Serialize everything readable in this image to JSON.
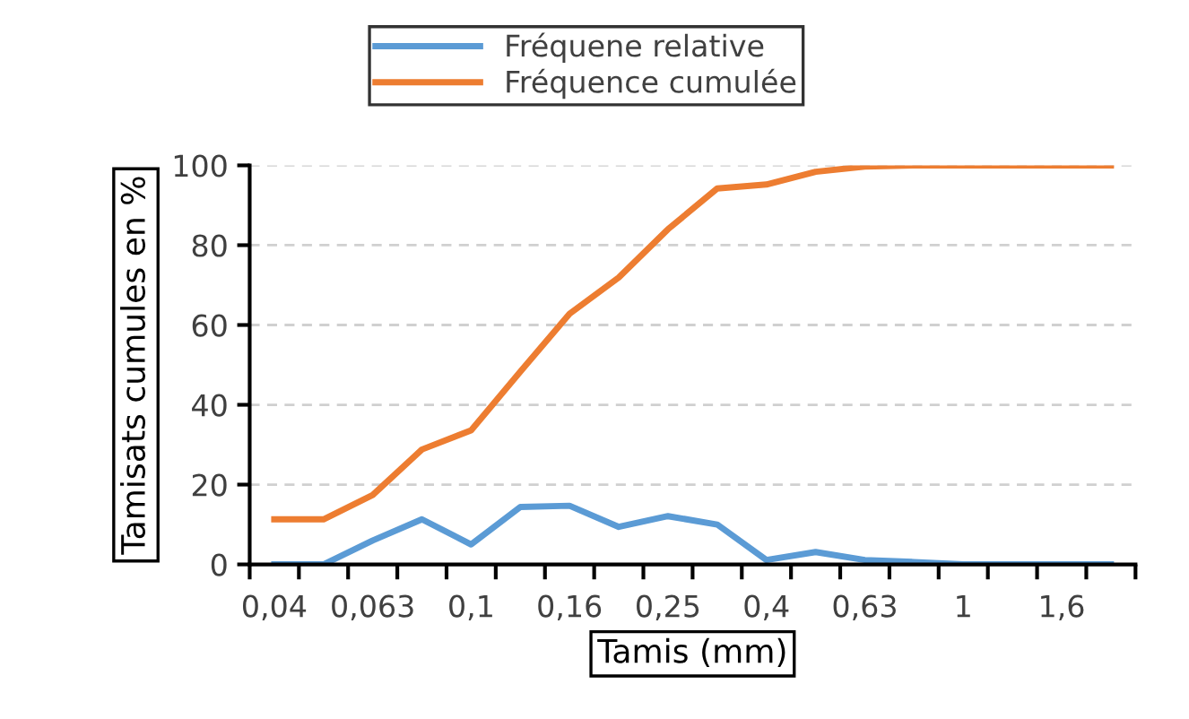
{
  "chart_data": {
    "type": "line",
    "xlabel": "Tamis (mm)",
    "ylabel": "Tamisats cumules en %",
    "categories": [
      "0,04",
      null,
      "0,063",
      null,
      "0,1",
      null,
      "0,16",
      null,
      "0,25",
      null,
      "0,4",
      null,
      "0,63",
      null,
      "1",
      null,
      "1,6",
      null
    ],
    "series": [
      {
        "name": "Fréquene relative",
        "color": "#5b9bd5",
        "values": [
          0,
          0,
          6,
          11.3,
          5,
          14.4,
          14.7,
          9.4,
          12.1,
          10,
          1.1,
          3.1,
          1.1,
          0.6,
          0,
          0,
          0,
          0
        ]
      },
      {
        "name": "Fréquence cumulée",
        "color": "#ed7d31",
        "values": [
          11.3,
          11.3,
          17.4,
          28.8,
          33.6,
          48.3,
          62.8,
          71.9,
          84,
          94.2,
          95.2,
          98.4,
          99.7,
          100,
          100,
          100,
          100,
          100
        ]
      }
    ],
    "ylim": [
      0,
      100
    ],
    "yticks": [
      0,
      20,
      40,
      60,
      80,
      100
    ],
    "grid": "y",
    "legend": "top",
    "marker": "none",
    "line_style": "solid"
  }
}
